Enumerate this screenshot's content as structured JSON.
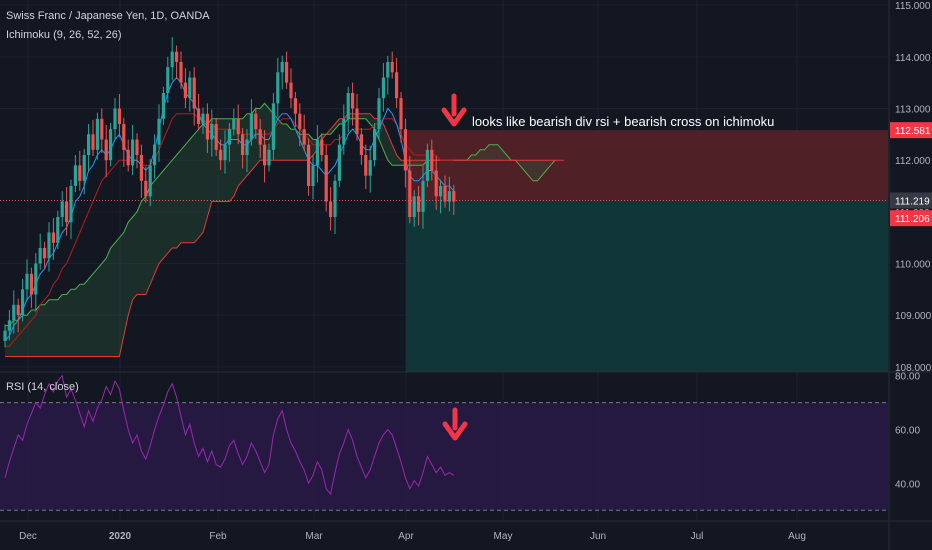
{
  "legend": {
    "symbol": "Swiss Franc / Japanese Yen, 1D, OANDA",
    "ichimoku": "Ichimoku (9, 26, 52, 26)",
    "rsi": "RSI (14, close)"
  },
  "annotation": "looks like bearish div rsi + bearish cross on ichimoku",
  "colors": {
    "background": "#131722",
    "up_candle": "#26a69a",
    "down_candle": "#ef5350",
    "tenkan": "#2196f3",
    "kijun": "#b71c1c",
    "span_a": "#4caf50",
    "span_b": "#e53935",
    "stop_zone": "#5a2226",
    "target_zone": "#123a3a",
    "rsi_line": "#9c27b0",
    "rsi_bg": "#2a1a4a",
    "arrow": "#f23645"
  },
  "chart_data": [
    {
      "type": "candlestick",
      "title": "Swiss Franc / Japanese Yen, 1D, OANDA",
      "x_tick_labels": [
        "Dec",
        "2020",
        "Feb",
        "Mar",
        "Apr",
        "May",
        "Jun",
        "Jul",
        "Aug"
      ],
      "y_tick_labels": [
        "108.000",
        "109.000",
        "110.000",
        "111.000",
        "112.000",
        "113.000",
        "114.000",
        "115.000"
      ],
      "ylim": [
        107.9,
        115.1
      ],
      "price_labels": [
        {
          "value": 112.581,
          "text": "112.581",
          "color": "#f23645"
        },
        {
          "value": 111.219,
          "text": "111.219",
          "color": "#363a45"
        },
        {
          "value": 111.206,
          "text": "111.206",
          "color": "#f23645"
        }
      ],
      "position_zone": {
        "entry": 111.219,
        "stop": 112.581,
        "target": 107.9
      },
      "closes": [
        108.7,
        108.9,
        109.2,
        109.0,
        109.5,
        109.8,
        109.4,
        110.0,
        110.3,
        110.1,
        110.6,
        110.4,
        110.9,
        111.2,
        110.8,
        111.5,
        111.9,
        111.6,
        112.1,
        112.5,
        112.2,
        112.8,
        112.4,
        112.0,
        112.6,
        113.0,
        112.7,
        112.2,
        111.9,
        112.4,
        112.1,
        111.6,
        111.3,
        111.9,
        112.3,
        112.8,
        113.3,
        113.8,
        114.1,
        113.9,
        113.5,
        113.2,
        113.6,
        113.0,
        112.7,
        112.9,
        112.4,
        112.7,
        112.2,
        112.0,
        112.3,
        112.6,
        112.8,
        112.5,
        112.1,
        112.4,
        112.9,
        112.6,
        112.3,
        111.9,
        112.2,
        113.1,
        113.7,
        113.9,
        113.5,
        113.2,
        112.9,
        112.6,
        112.3,
        111.5,
        111.9,
        112.4,
        112.1,
        111.2,
        110.9,
        111.6,
        112.3,
        112.8,
        113.3,
        113.0,
        112.5,
        112.1,
        111.7,
        112.0,
        112.6,
        113.2,
        113.6,
        113.9,
        113.7,
        113.2,
        112.6,
        111.8,
        110.9,
        111.3,
        111.0,
        111.6,
        112.2,
        111.8,
        111.3,
        111.5,
        111.2,
        111.4,
        111.2
      ],
      "tenkan": [
        108.5,
        108.6,
        108.8,
        108.9,
        109.1,
        109.3,
        109.4,
        109.6,
        109.8,
        109.9,
        110.1,
        110.2,
        110.4,
        110.6,
        110.7,
        110.9,
        111.2,
        111.3,
        111.5,
        111.8,
        111.9,
        112.1,
        112.2,
        112.1,
        112.2,
        112.4,
        112.5,
        112.3,
        112.1,
        112.0,
        112.0,
        111.9,
        111.8,
        111.9,
        112.2,
        112.6,
        113.0,
        113.3,
        113.5,
        113.6,
        113.5,
        113.3,
        113.2,
        113.1,
        112.9,
        112.7,
        112.6,
        112.5,
        112.4,
        112.3,
        112.3,
        112.4,
        112.4,
        112.4,
        112.3,
        112.3,
        112.4,
        112.5,
        112.5,
        112.4,
        112.4,
        112.6,
        112.8,
        112.9,
        112.9,
        112.8,
        112.6,
        112.4,
        112.2,
        112.0,
        111.9,
        111.9,
        111.8,
        111.7,
        111.8,
        111.9,
        112.1,
        112.3,
        112.5,
        112.6,
        112.5,
        112.3,
        112.2,
        112.2,
        112.4,
        112.6,
        112.8,
        113.0,
        112.9,
        112.7,
        112.4,
        112.0,
        111.7,
        111.6,
        111.6,
        111.7,
        111.8,
        111.8,
        111.7,
        111.6,
        111.5,
        111.5,
        111.4
      ],
      "kijun": [
        108.4,
        108.4,
        108.5,
        108.6,
        108.7,
        108.8,
        108.9,
        109.0,
        109.2,
        109.3,
        109.4,
        109.6,
        109.7,
        109.9,
        110.0,
        110.2,
        110.4,
        110.6,
        110.8,
        111.0,
        111.2,
        111.4,
        111.6,
        111.7,
        111.8,
        111.9,
        112.0,
        112.0,
        112.0,
        112.0,
        112.0,
        111.9,
        111.9,
        111.9,
        112.0,
        112.2,
        112.4,
        112.6,
        112.8,
        112.9,
        112.9,
        112.9,
        112.9,
        112.9,
        112.8,
        112.8,
        112.7,
        112.7,
        112.6,
        112.6,
        112.6,
        112.6,
        112.6,
        112.6,
        112.5,
        112.5,
        112.5,
        112.5,
        112.5,
        112.5,
        112.5,
        112.6,
        112.7,
        112.8,
        112.8,
        112.8,
        112.7,
        112.6,
        112.5,
        112.4,
        112.3,
        112.3,
        112.3,
        112.3,
        112.3,
        112.4,
        112.4,
        112.5,
        112.5,
        112.6,
        112.6,
        112.6,
        112.6,
        112.6,
        112.7,
        112.7,
        112.8,
        112.8,
        112.8,
        112.7,
        112.5,
        112.3,
        112.2,
        112.1,
        112.1,
        112.1,
        112.1,
        112.1,
        112.1,
        112.0,
        112.0,
        112.0,
        112.0
      ],
      "span_a": [
        108.8,
        108.8,
        108.9,
        108.9,
        109.0,
        109.0,
        109.1,
        109.1,
        109.2,
        109.2,
        109.3,
        109.3,
        109.3,
        109.4,
        109.4,
        109.5,
        109.5,
        109.6,
        109.6,
        109.7,
        109.8,
        109.9,
        110.0,
        110.1,
        110.3,
        110.4,
        110.5,
        110.6,
        110.8,
        110.9,
        111.0,
        111.2,
        111.3,
        111.5,
        111.6,
        111.7,
        111.8,
        111.9,
        112.0,
        112.1,
        112.2,
        112.3,
        112.4,
        112.5,
        112.6,
        112.7,
        112.7,
        112.8,
        112.8,
        112.8,
        112.8,
        112.8,
        112.8,
        112.8,
        112.8,
        112.9,
        112.9,
        113.0,
        113.0,
        113.1,
        113.0,
        112.9,
        112.8,
        112.7,
        112.7,
        112.6,
        112.6,
        112.5,
        112.5,
        112.5,
        112.4,
        112.4,
        112.5,
        112.5,
        112.5,
        112.6,
        112.7,
        112.7,
        112.8,
        112.8,
        112.8,
        112.8,
        112.8,
        112.7,
        112.6,
        112.4,
        112.2,
        112.0,
        111.9,
        111.9,
        111.9,
        111.9,
        111.9,
        111.9,
        111.9,
        111.9,
        112.0,
        112.0,
        112.0,
        112.0,
        112.0,
        112.0,
        112.0,
        112.0,
        112.0,
        112.0,
        112.1,
        112.1,
        112.2,
        112.2,
        112.3,
        112.3,
        112.3,
        112.2,
        112.1,
        112.0,
        112.0,
        111.9,
        111.8,
        111.7,
        111.6,
        111.6,
        111.7,
        111.8,
        111.9,
        112.0
      ],
      "span_b": [
        108.2,
        108.2,
        108.2,
        108.2,
        108.2,
        108.2,
        108.2,
        108.2,
        108.2,
        108.2,
        108.2,
        108.2,
        108.2,
        108.2,
        108.2,
        108.2,
        108.2,
        108.2,
        108.2,
        108.2,
        108.2,
        108.2,
        108.2,
        108.2,
        108.2,
        108.2,
        108.2,
        108.6,
        109.0,
        109.3,
        109.4,
        109.4,
        109.4,
        109.6,
        109.8,
        110.0,
        110.1,
        110.2,
        110.3,
        110.3,
        110.4,
        110.4,
        110.4,
        110.4,
        110.5,
        110.6,
        110.9,
        111.2,
        111.2,
        111.2,
        111.2,
        111.2,
        111.3,
        111.5,
        111.6,
        111.7,
        111.8,
        111.9,
        112.0,
        112.0,
        112.0,
        112.0,
        112.0,
        112.0,
        112.0,
        112.0,
        112.0,
        112.0,
        112.0,
        112.0,
        112.1,
        112.2,
        112.4,
        112.5,
        112.6,
        112.7,
        112.8,
        112.8,
        112.9,
        112.9,
        112.9,
        112.9,
        112.9,
        112.9,
        112.8,
        112.8,
        112.7,
        112.5,
        112.3,
        112.1,
        112.0,
        112.0,
        112.0,
        112.0,
        112.0,
        112.0,
        112.0,
        112.0,
        112.0,
        112.0,
        112.0,
        112.0,
        112.0,
        112.0,
        112.0,
        112.0,
        112.0,
        112.0,
        112.0,
        112.0,
        112.0,
        112.0,
        112.0,
        112.0,
        112.0,
        112.0,
        112.0,
        112.0,
        112.0,
        112.0,
        112.0,
        112.0,
        112.0,
        112.0,
        112.0,
        112.0,
        112.0,
        112.0
      ]
    },
    {
      "type": "line",
      "title": "RSI (14, close)",
      "y_tick_labels": [
        "40.00",
        "60.00",
        "80.00"
      ],
      "ylim": [
        26,
        81
      ],
      "bands": [
        70,
        30
      ],
      "values": [
        42,
        48,
        53,
        58,
        56,
        62,
        66,
        70,
        68,
        73,
        77,
        74,
        78,
        80,
        72,
        75,
        71,
        66,
        61,
        67,
        63,
        68,
        71,
        76,
        73,
        78,
        75,
        67,
        60,
        55,
        58,
        52,
        49,
        54,
        60,
        65,
        69,
        74,
        77,
        72,
        65,
        58,
        62,
        55,
        50,
        53,
        48,
        52,
        47,
        46,
        49,
        54,
        56,
        51,
        47,
        50,
        55,
        52,
        48,
        44,
        47,
        58,
        64,
        67,
        60,
        55,
        52,
        48,
        45,
        40,
        43,
        48,
        45,
        38,
        36,
        44,
        51,
        55,
        60,
        56,
        50,
        46,
        42,
        45,
        50,
        55,
        58,
        60,
        58,
        53,
        48,
        42,
        38,
        41,
        39,
        44,
        50,
        47,
        44,
        46,
        43,
        44,
        43
      ]
    }
  ]
}
